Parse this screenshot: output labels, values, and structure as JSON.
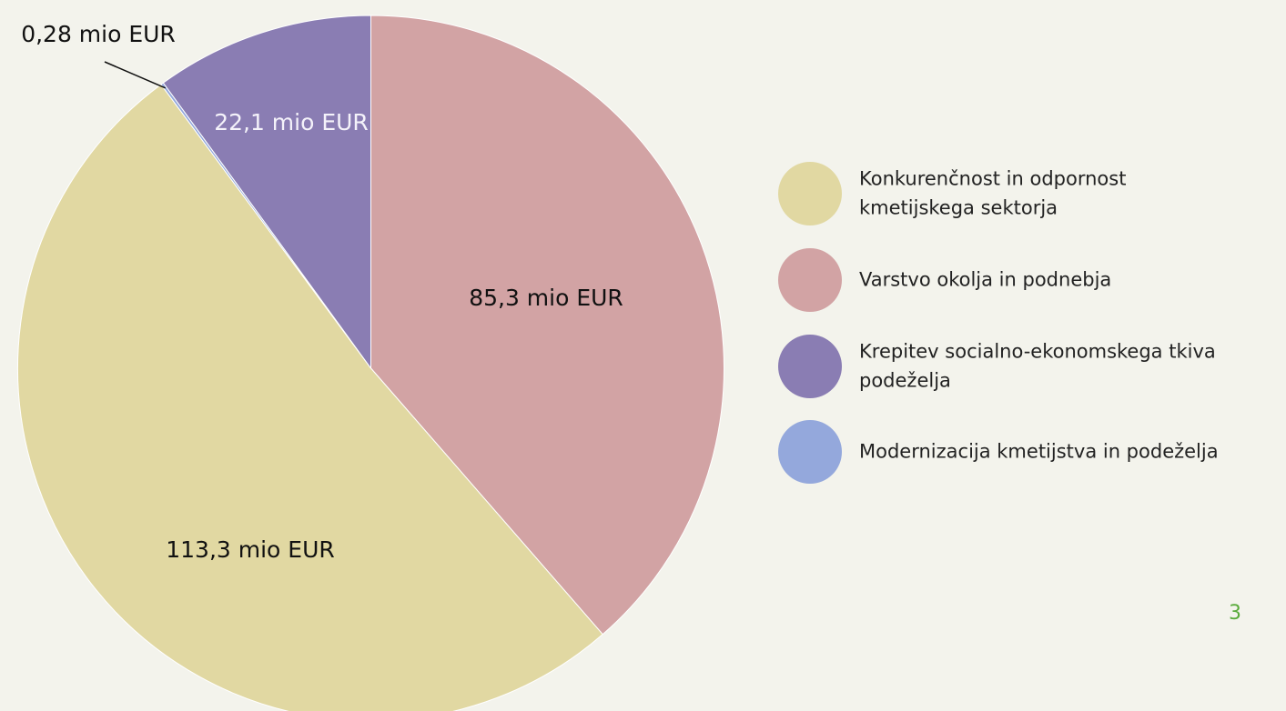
{
  "chart_data": {
    "type": "pie",
    "categories": [
      "Konkurenčnost in odpornost kmetijskega sektorja",
      "Varstvo okolja in podnebja",
      "Krepitev socialno-ekonomskega tkiva podeželja",
      "Modernizacija kmetijstva in podeželja"
    ],
    "values": [
      113.3,
      85.3,
      22.1,
      0.28
    ],
    "value_labels": [
      "113,3 mio EUR",
      "85,3 mio EUR",
      "22,1 mio EUR",
      "0,28 mio EUR"
    ],
    "colors": [
      "#e1d8a2",
      "#d2a3a4",
      "#8a7db3",
      "#94a8dc"
    ],
    "legend": "right"
  },
  "page_number": "3"
}
